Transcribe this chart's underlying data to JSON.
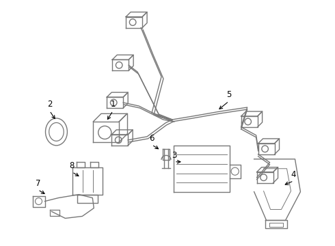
{
  "bg_color": "#ffffff",
  "lc": "#777777",
  "lw": 1.0,
  "fs": 8.5,
  "figsize": [
    4.9,
    3.6
  ],
  "dpi": 100
}
